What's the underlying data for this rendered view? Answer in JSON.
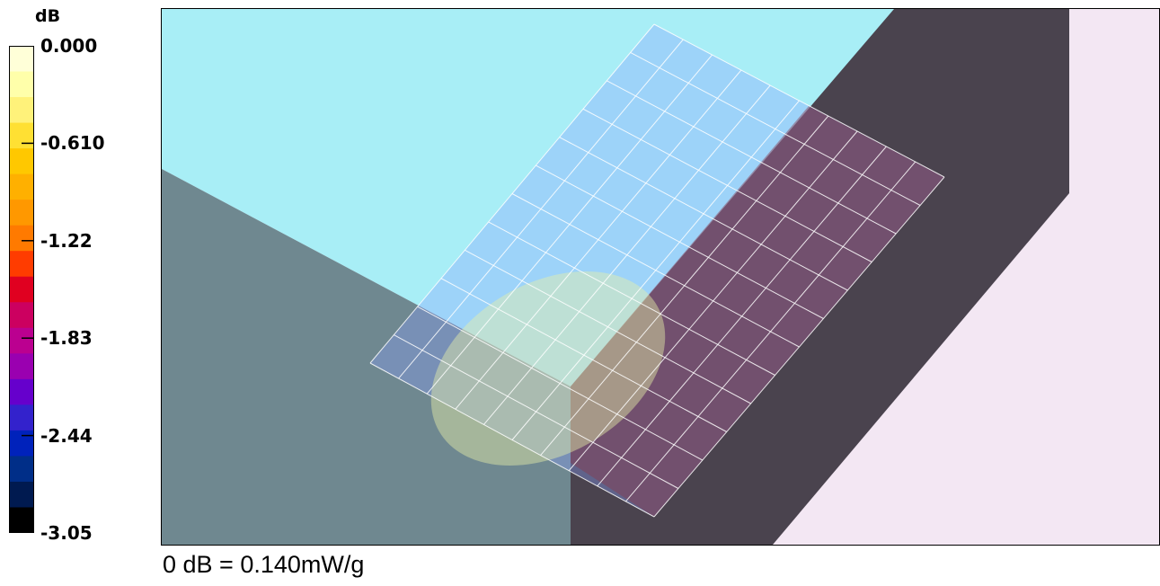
{
  "chart_data": {
    "type": "heatmap",
    "title": "",
    "legend": {
      "unit": "dB",
      "range": [
        -3.05,
        0.0
      ],
      "ticks": [
        {
          "value": 0.0,
          "label": "0.000"
        },
        {
          "value": -0.61,
          "label": "-0.610"
        },
        {
          "value": -1.22,
          "label": "-1.22"
        },
        {
          "value": -1.83,
          "label": "-1.83"
        },
        {
          "value": -2.44,
          "label": "-2.44"
        },
        {
          "value": -3.05,
          "label": "-3.05"
        }
      ],
      "colors": [
        "#ffffd8",
        "#ffffaa",
        "#fff27a",
        "#ffe033",
        "#ffc800",
        "#ffb000",
        "#ff9800",
        "#ff7a00",
        "#ff3c00",
        "#e00020",
        "#cc0060",
        "#bb0090",
        "#9a00b0",
        "#6600cc",
        "#3322cc",
        "#0022bb",
        "#002e88",
        "#001a50",
        "#000000"
      ]
    },
    "caption": "0 dB = 0.140mW/g",
    "scene_colors": {
      "phantom_top": "#a8eef6",
      "phantom_side": "#6f8890",
      "device_dark": "#4a434e",
      "background_right": "#f3e7f3",
      "grid_lines": "#ffffff"
    },
    "grid": {
      "rows": 12,
      "cols": 10
    }
  }
}
